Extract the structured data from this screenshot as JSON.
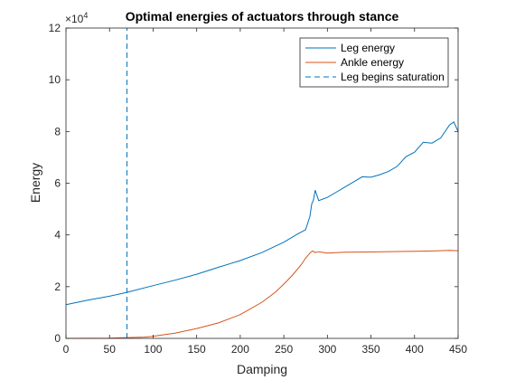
{
  "chart_data": {
    "type": "line",
    "title": "Optimal energies of actuators through stance",
    "xlabel": "Damping",
    "ylabel": "Energy",
    "xlim": [
      0,
      450
    ],
    "ylim": [
      0,
      120000
    ],
    "xticks": [
      0,
      50,
      100,
      150,
      200,
      250,
      300,
      350,
      400,
      450
    ],
    "yticks": [
      0,
      20000,
      40000,
      60000,
      80000,
      100000,
      120000
    ],
    "ytick_labels": [
      "0",
      "2",
      "4",
      "6",
      "8",
      "10",
      "12"
    ],
    "y_exponent_base": "×10",
    "y_exponent_power": "4",
    "legend_position": "top-right",
    "grid": false,
    "series": [
      {
        "name": "Leg energy",
        "color": "#0072BD",
        "style": "solid",
        "x": [
          0,
          25,
          50,
          70,
          100,
          125,
          150,
          175,
          200,
          225,
          250,
          265,
          275,
          280,
          282,
          284,
          286,
          290,
          300,
          310,
          320,
          330,
          340,
          350,
          360,
          370,
          380,
          390,
          400,
          410,
          420,
          430,
          440,
          445,
          450
        ],
        "y": [
          13000,
          14800,
          16300,
          17800,
          20400,
          22500,
          24800,
          27500,
          30100,
          33200,
          37200,
          40200,
          42000,
          47200,
          52000,
          53500,
          57300,
          53300,
          54500,
          56500,
          58500,
          60500,
          62500,
          62300,
          63300,
          64500,
          66500,
          70200,
          72000,
          75800,
          75500,
          77500,
          82500,
          83700,
          80000
        ]
      },
      {
        "name": "Ankle energy",
        "color": "#D95319",
        "style": "solid",
        "x": [
          0,
          50,
          70,
          90,
          100,
          110,
          125,
          150,
          175,
          200,
          225,
          240,
          250,
          260,
          270,
          275,
          280,
          283,
          286,
          290,
          300,
          320,
          350,
          380,
          400,
          420,
          440,
          450
        ],
        "y": [
          0,
          100,
          300,
          500,
          800,
          1300,
          2000,
          3800,
          6000,
          9200,
          14000,
          17800,
          21000,
          24500,
          28500,
          31000,
          33000,
          33800,
          33200,
          33500,
          33000,
          33300,
          33400,
          33600,
          33700,
          33800,
          34000,
          33900
        ]
      },
      {
        "name": "Leg begins saturation",
        "color": "#0072BD",
        "style": "dashed",
        "x": [
          70,
          70
        ],
        "y": [
          0,
          120000
        ]
      }
    ]
  }
}
